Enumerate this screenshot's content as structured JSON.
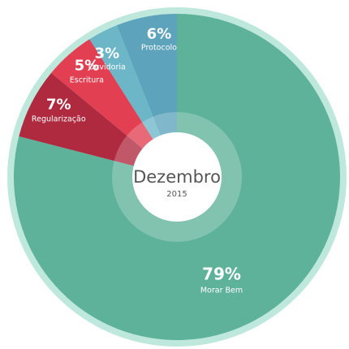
{
  "chart_data": {
    "type": "pie",
    "center_title": "Dezembro",
    "center_subtitle": "2015",
    "slices": [
      {
        "label": "Morar Bem",
        "value": 79,
        "value_label": "79%",
        "color": "#5FB29A"
      },
      {
        "label": "Regularização",
        "value": 7,
        "value_label": "7%",
        "color": "#B02A3F"
      },
      {
        "label": "Escritura",
        "value": 5,
        "value_label": "5%",
        "color": "#E23F52"
      },
      {
        "label": "Ouvidoria",
        "value": 3,
        "value_label": "3%",
        "color": "#6DB6C8"
      },
      {
        "label": "Protocolo",
        "value": 6,
        "value_label": "6%",
        "color": "#5DA3BB"
      }
    ],
    "outer_ring_color": "#BDE8DB"
  }
}
